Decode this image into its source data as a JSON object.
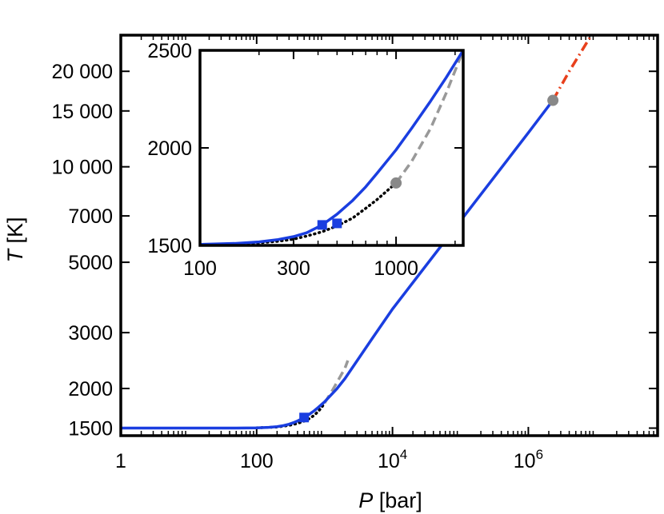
{
  "chart_data": [
    {
      "type": "line",
      "xlabel": {
        "var": "P",
        "unit": " [bar]"
      },
      "ylabel": {
        "var": "T",
        "unit": " [K]"
      },
      "x_scale": "log",
      "y_scale": "log",
      "xlim": [
        1,
        80000000
      ],
      "ylim": [
        1420,
        26000
      ],
      "x_ticks": [
        {
          "value": 1,
          "label": "1"
        },
        {
          "value": 100,
          "label": "100"
        },
        {
          "value": 10000,
          "label": "10",
          "exp": "4"
        },
        {
          "value": 1000000,
          "label": "10",
          "exp": "6"
        }
      ],
      "y_ticks": [
        {
          "value": 1500,
          "label": "1500"
        },
        {
          "value": 2000,
          "label": "2000"
        },
        {
          "value": 3000,
          "label": "3000"
        },
        {
          "value": 5000,
          "label": "5000"
        },
        {
          "value": 7000,
          "label": "7000"
        },
        {
          "value": 10000,
          "label": "10 000"
        },
        {
          "value": 15000,
          "label": "15 000"
        },
        {
          "value": 20000,
          "label": "20 000"
        }
      ],
      "series": [
        {
          "style": "solid",
          "color": "#1a3ee0",
          "x": [
            1,
            10,
            50,
            100,
            150,
            200,
            250,
            300,
            350,
            400,
            450,
            500,
            600,
            700,
            800,
            1000,
            1500,
            2000,
            5000,
            10000,
            100000,
            1000000,
            2300000
          ],
          "y": [
            1500,
            1500,
            1501,
            1503,
            1508,
            1516,
            1528,
            1543,
            1561,
            1580,
            1600,
            1620,
            1660,
            1700,
            1740,
            1815,
            1990,
            2150,
            2870,
            3560,
            6750,
            12800,
            16200
          ]
        },
        {
          "style": "dotted",
          "color": "#000000",
          "x": [
            100,
            200,
            300,
            400,
            500,
            600,
            700,
            800,
            900,
            1000
          ],
          "y": [
            1503,
            1512,
            1530,
            1552,
            1578,
            1608,
            1645,
            1690,
            1740,
            1800
          ]
        },
        {
          "style": "dashed",
          "color": "#999999",
          "x": [
            1000,
            1300,
            1600,
            2000,
            2200
          ],
          "y": [
            1800,
            1970,
            2130,
            2320,
            2450
          ]
        },
        {
          "style": "dashdot",
          "color": "#e8401c",
          "x": [
            2300000,
            4000000,
            8000000
          ],
          "y": [
            16200,
            20000,
            25500
          ]
        }
      ],
      "markers": [
        {
          "shape": "square",
          "color": "#1a3ee0",
          "x": 500,
          "y": 1620
        },
        {
          "shape": "circle",
          "color": "#888888",
          "x": 2300000,
          "y": 16200
        }
      ]
    },
    {
      "type": "line",
      "inset": true,
      "x_scale": "log",
      "xlim": [
        100,
        2200
      ],
      "ylim": [
        1500,
        2500
      ],
      "x_ticks": [
        {
          "value": 100,
          "label": "100"
        },
        {
          "value": 300,
          "label": "300"
        },
        {
          "value": 1000,
          "label": "1000"
        }
      ],
      "y_ticks": [
        {
          "value": 1500,
          "label": "1500"
        },
        {
          "value": 2000,
          "label": "2000"
        },
        {
          "value": 2500,
          "label": "2500"
        }
      ],
      "series": [
        {
          "style": "solid",
          "color": "#1a3ee0",
          "x": [
            100,
            150,
            200,
            250,
            300,
            350,
            420,
            500,
            600,
            700,
            800,
            1000,
            1200,
            1500,
            1800,
            2200
          ],
          "y": [
            1505,
            1510,
            1518,
            1530,
            1545,
            1565,
            1605,
            1660,
            1730,
            1800,
            1870,
            1990,
            2100,
            2240,
            2360,
            2500
          ]
        },
        {
          "style": "dotted",
          "color": "#000000",
          "x": [
            100,
            150,
            200,
            250,
            300,
            350,
            420,
            500,
            600,
            700,
            800,
            900,
            1000
          ],
          "y": [
            1503,
            1507,
            1513,
            1521,
            1532,
            1548,
            1570,
            1600,
            1640,
            1690,
            1735,
            1780,
            1820
          ]
        },
        {
          "style": "dashed",
          "color": "#999999",
          "x": [
            1000,
            1200,
            1500,
            1800,
            2200
          ],
          "y": [
            1820,
            1930,
            2100,
            2280,
            2500
          ]
        }
      ],
      "markers": [
        {
          "shape": "square",
          "color": "#1a3ee0",
          "x": 420,
          "y": 1605
        },
        {
          "shape": "square",
          "color": "#1a3ee0",
          "x": 500,
          "y": 1613
        },
        {
          "shape": "circle",
          "color": "#888888",
          "x": 1000,
          "y": 1820
        }
      ]
    }
  ]
}
